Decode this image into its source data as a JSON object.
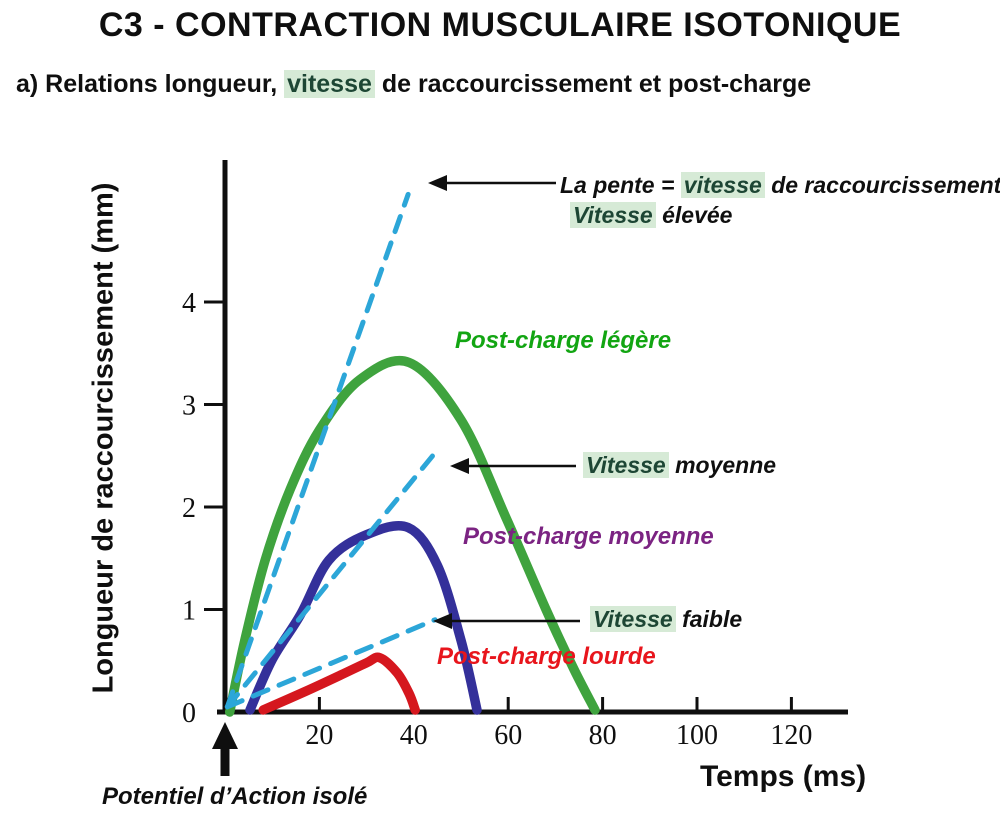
{
  "page": {
    "title": "C3 - CONTRACTION MUSCULAIRE ISOTONIQUE",
    "subtitle": {
      "pre": "a) Relations longueur, ",
      "highlight": "vitesse",
      "post": " de raccourcissement et post-charge"
    }
  },
  "chart_data": {
    "type": "line",
    "xlabel": "Temps (ms)",
    "ylabel": "Longueur de raccourcissement (mm)",
    "xlim": [
      0,
      132
    ],
    "ylim": [
      0,
      5.3
    ],
    "x_ticks": [
      20,
      40,
      60,
      80,
      100,
      120
    ],
    "y_ticks": [
      0,
      1,
      2,
      3,
      4
    ],
    "grid": false,
    "legend": "none (curves labeled by colored annotations)",
    "series": [
      {
        "id": "legere",
        "name": "Post-charge légère",
        "color": "#3fa33e",
        "line": "solid",
        "points": [
          [
            1,
            0
          ],
          [
            4.2,
            0.7
          ],
          [
            8.5,
            1.48
          ],
          [
            13.8,
            2.17
          ],
          [
            20,
            2.75
          ],
          [
            28.5,
            3.24
          ],
          [
            39,
            3.41
          ],
          [
            50,
            2.85
          ],
          [
            59.5,
            1.9
          ],
          [
            68,
            1.0
          ],
          [
            74,
            0.41
          ],
          [
            78.4,
            0.02
          ]
        ]
      },
      {
        "id": "moyenne",
        "name": "Post-charge moyenne",
        "color": "#34309a",
        "line": "solid",
        "points": [
          [
            5.3,
            0.02
          ],
          [
            10,
            0.51
          ],
          [
            16,
            0.95
          ],
          [
            22,
            1.48
          ],
          [
            30,
            1.73
          ],
          [
            38.8,
            1.8
          ],
          [
            45,
            1.43
          ],
          [
            50,
            0.7
          ],
          [
            53.4,
            0.02
          ]
        ]
      },
      {
        "id": "lourde",
        "name": "Post-charge lourde",
        "color": "#d5171e",
        "line": "solid",
        "points": [
          [
            8.1,
            0.02
          ],
          [
            17,
            0.2
          ],
          [
            24.5,
            0.36
          ],
          [
            30,
            0.48
          ],
          [
            32.8,
            0.53
          ],
          [
            36.5,
            0.38
          ],
          [
            39,
            0.18
          ],
          [
            40.3,
            0.02
          ]
        ]
      },
      {
        "id": "pente-elevee",
        "name": "Pente : vitesse élevée",
        "color": "#2ca6d8",
        "line": "dashed",
        "points": [
          [
            0.5,
            0.05
          ],
          [
            38.8,
            5.05
          ]
        ]
      },
      {
        "id": "pente-moyenne",
        "name": "Pente : vitesse moyenne",
        "color": "#2ca6d8",
        "line": "dashed",
        "points": [
          [
            0.5,
            0.05
          ],
          [
            44,
            2.5
          ]
        ]
      },
      {
        "id": "pente-faible",
        "name": "Pente : vitesse faible",
        "color": "#2ca6d8",
        "line": "dashed",
        "points": [
          [
            0.5,
            0.05
          ],
          [
            44.5,
            0.9
          ]
        ]
      }
    ],
    "annotations": [
      "La pente = vitesse de raccourcissement: Vitesse élevée",
      "Vitesse moyenne",
      "Vitesse faible",
      "Post-charge légère",
      "Post-charge moyenne",
      "Post-charge lourde",
      "Potentiel d’Action isolé (flèche sous l’origine)"
    ]
  },
  "annotations": {
    "pente": {
      "line1_pre": "La pente = ",
      "line1_hl": "vitesse",
      "line1_post": " de raccourcissement:",
      "line2_hl": "Vitesse",
      "line2_post": " élevée"
    },
    "vitesse_moyenne": {
      "hl": "Vitesse",
      "post": " moyenne"
    },
    "vitesse_faible": {
      "hl": "Vitesse",
      "post": " faible"
    },
    "post_charge_legere": "Post-charge légère",
    "post_charge_moyenne": "Post-charge moyenne",
    "post_charge_lourde": "Post-charge lourde",
    "potentiel_action": "Potentiel d’Action isolé"
  },
  "colors": {
    "curve_light_load": "#3fa33e",
    "curve_medium_load": "#34309a",
    "curve_heavy_load": "#d5171e",
    "velocity_dashed": "#2ca6d8",
    "label_light_load": "#12a512",
    "label_medium_load": "#7b2382",
    "label_heavy_load": "#e8151c",
    "highlight_bg": "#d6ead6",
    "axis": "#0f0f0f"
  }
}
